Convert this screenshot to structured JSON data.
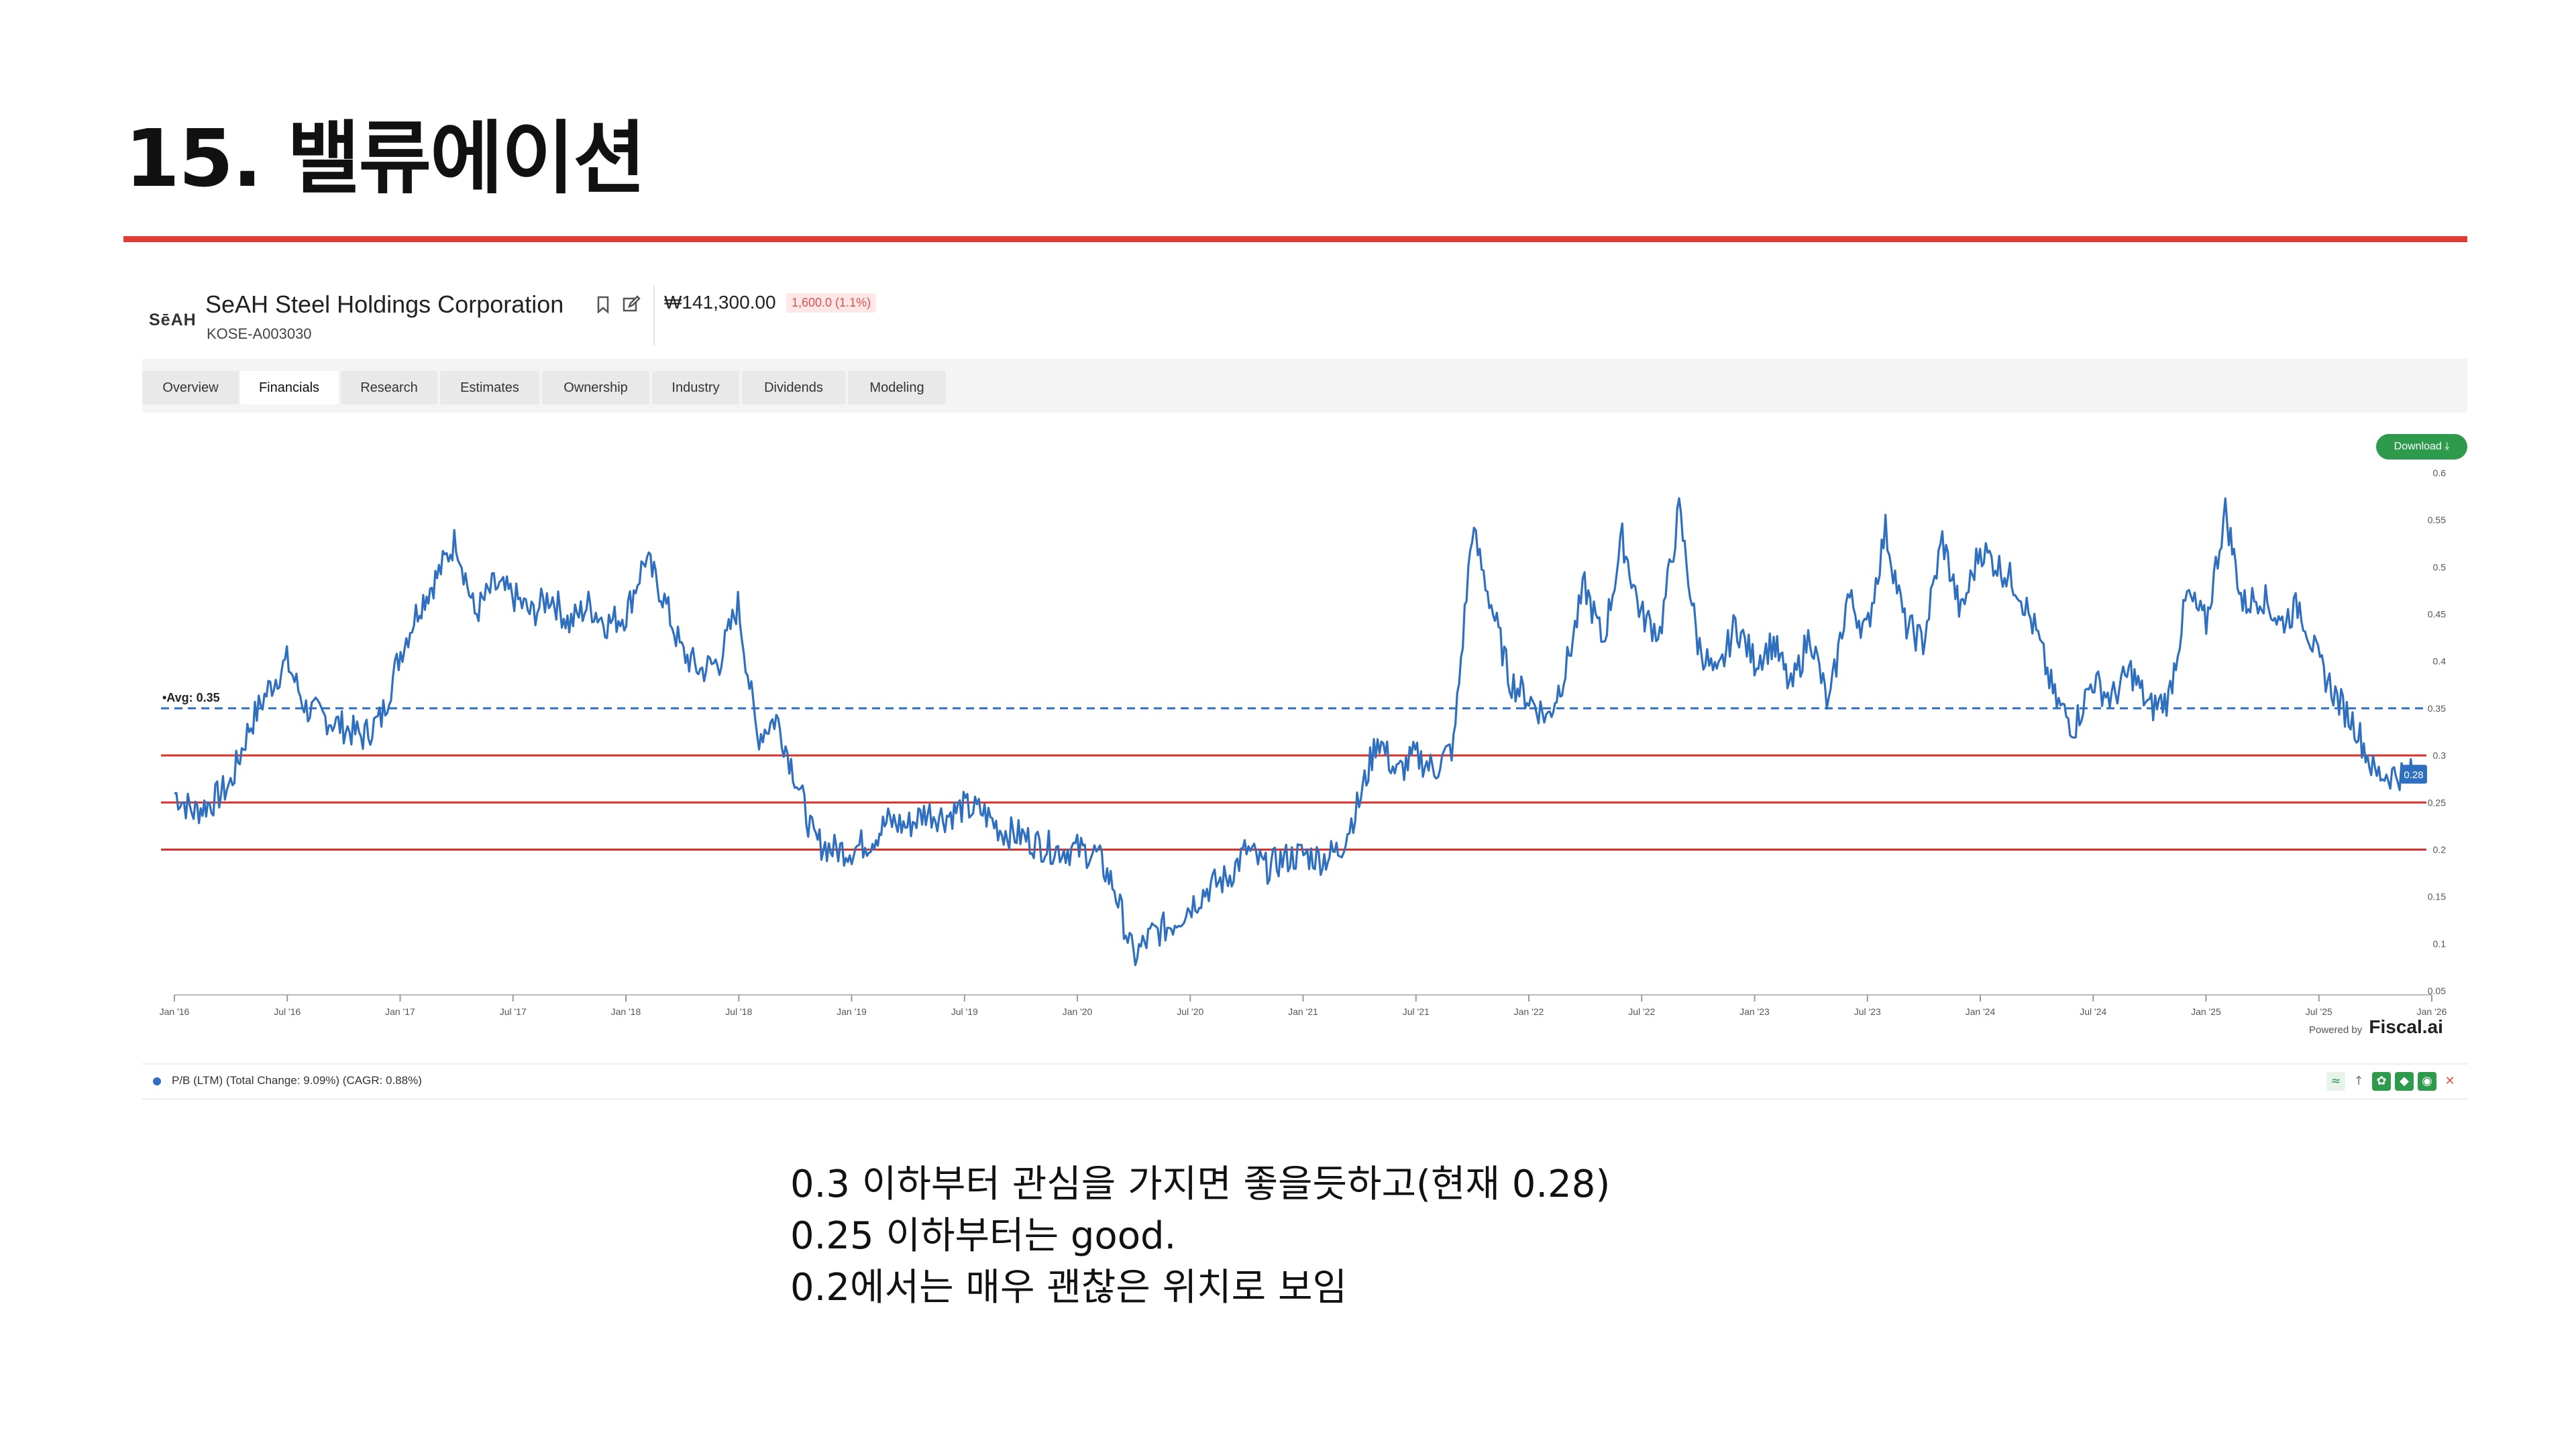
{
  "slide": {
    "title": "15. 밸류에이션",
    "notes": [
      "0.3 이하부터 관심을 가지면 좋을듯하고(현재 0.28)",
      "0.25 이하부터는 good.",
      "0.2에서는 매우 괜찮은 위치로 보임"
    ]
  },
  "header": {
    "logo": "SēAH",
    "company": "SeAH Steel Holdings Corporation",
    "ticker": "KOSE-A003030",
    "price": "₩141,300.00",
    "change": "1,600.0 (1.1%)",
    "icons": [
      "bookmark-icon",
      "edit-icon"
    ]
  },
  "tabs": [
    "Overview",
    "Financials",
    "Research",
    "Estimates",
    "Ownership",
    "Industry",
    "Dividends",
    "Modeling"
  ],
  "active_tab": "Financials",
  "download_label": "Download ⤓",
  "powered_by": {
    "prefix": "Powered by",
    "brand": "Fiscal.ai"
  },
  "legend": {
    "text": "P/B (LTM) (Total Change: 9.09%) (CAGR: 0.88%)",
    "color": "#2f6fbf"
  },
  "chart_data": {
    "type": "line",
    "series": [
      {
        "name": "P/B (LTM)",
        "color": "#2f6fbf",
        "points": [
          [
            "2016-01-01",
            0.26
          ],
          [
            "2016-02-01",
            0.24
          ],
          [
            "2016-03-01",
            0.25
          ],
          [
            "2016-04-01",
            0.27
          ],
          [
            "2016-05-01",
            0.33
          ],
          [
            "2016-06-01",
            0.37
          ],
          [
            "2016-07-01",
            0.4
          ],
          [
            "2016-08-01",
            0.35
          ],
          [
            "2016-09-01",
            0.34
          ],
          [
            "2016-10-01",
            0.33
          ],
          [
            "2016-11-01",
            0.32
          ],
          [
            "2016-12-01",
            0.34
          ],
          [
            "2017-01-01",
            0.41
          ],
          [
            "2017-02-01",
            0.46
          ],
          [
            "2017-03-01",
            0.49
          ],
          [
            "2017-04-01",
            0.53
          ],
          [
            "2017-05-01",
            0.45
          ],
          [
            "2017-06-01",
            0.48
          ],
          [
            "2017-07-01",
            0.47
          ],
          [
            "2017-08-01",
            0.45
          ],
          [
            "2017-09-01",
            0.47
          ],
          [
            "2017-10-01",
            0.44
          ],
          [
            "2017-11-01",
            0.46
          ],
          [
            "2017-12-01",
            0.44
          ],
          [
            "2018-01-01",
            0.45
          ],
          [
            "2018-02-01",
            0.51
          ],
          [
            "2018-03-01",
            0.47
          ],
          [
            "2018-04-01",
            0.41
          ],
          [
            "2018-05-01",
            0.39
          ],
          [
            "2018-06-01",
            0.4
          ],
          [
            "2018-07-01",
            0.46
          ],
          [
            "2018-08-01",
            0.32
          ],
          [
            "2018-09-01",
            0.34
          ],
          [
            "2018-10-01",
            0.28
          ],
          [
            "2018-11-01",
            0.21
          ],
          [
            "2018-12-01",
            0.2
          ],
          [
            "2019-01-01",
            0.2
          ],
          [
            "2019-02-01",
            0.21
          ],
          [
            "2019-03-01",
            0.23
          ],
          [
            "2019-04-01",
            0.225
          ],
          [
            "2019-05-01",
            0.24
          ],
          [
            "2019-06-01",
            0.235
          ],
          [
            "2019-07-01",
            0.245
          ],
          [
            "2019-08-01",
            0.24
          ],
          [
            "2019-09-01",
            0.22
          ],
          [
            "2019-10-01",
            0.215
          ],
          [
            "2019-11-01",
            0.205
          ],
          [
            "2019-12-01",
            0.2
          ],
          [
            "2020-01-01",
            0.2
          ],
          [
            "2020-02-01",
            0.195
          ],
          [
            "2020-03-01",
            0.16
          ],
          [
            "2020-04-01",
            0.085
          ],
          [
            "2020-05-01",
            0.11
          ],
          [
            "2020-06-01",
            0.12
          ],
          [
            "2020-07-01",
            0.14
          ],
          [
            "2020-08-01",
            0.16
          ],
          [
            "2020-09-01",
            0.17
          ],
          [
            "2020-10-01",
            0.2
          ],
          [
            "2020-11-01",
            0.18
          ],
          [
            "2020-12-01",
            0.19
          ],
          [
            "2021-01-01",
            0.195
          ],
          [
            "2021-02-01",
            0.19
          ],
          [
            "2021-03-01",
            0.2
          ],
          [
            "2021-04-01",
            0.25
          ],
          [
            "2021-05-01",
            0.32
          ],
          [
            "2021-06-01",
            0.28
          ],
          [
            "2021-07-01",
            0.3
          ],
          [
            "2021-08-01",
            0.285
          ],
          [
            "2021-09-01",
            0.31
          ],
          [
            "2021-10-01",
            0.54
          ],
          [
            "2021-11-01",
            0.46
          ],
          [
            "2021-12-01",
            0.38
          ],
          [
            "2022-01-01",
            0.36
          ],
          [
            "2022-02-01",
            0.34
          ],
          [
            "2022-03-01",
            0.39
          ],
          [
            "2022-04-01",
            0.48
          ],
          [
            "2022-05-01",
            0.42
          ],
          [
            "2022-06-01",
            0.53
          ],
          [
            "2022-07-01",
            0.45
          ],
          [
            "2022-08-01",
            0.43
          ],
          [
            "2022-09-01",
            0.56
          ],
          [
            "2022-10-01",
            0.42
          ],
          [
            "2022-11-01",
            0.38
          ],
          [
            "2022-12-01",
            0.44
          ],
          [
            "2023-01-01",
            0.4
          ],
          [
            "2023-02-01",
            0.42
          ],
          [
            "2023-03-01",
            0.37
          ],
          [
            "2023-04-01",
            0.43
          ],
          [
            "2023-05-01",
            0.35
          ],
          [
            "2023-06-01",
            0.47
          ],
          [
            "2023-07-01",
            0.43
          ],
          [
            "2023-08-01",
            0.54
          ],
          [
            "2023-09-01",
            0.44
          ],
          [
            "2023-10-01",
            0.42
          ],
          [
            "2023-11-01",
            0.53
          ],
          [
            "2023-12-01",
            0.45
          ],
          [
            "2024-01-01",
            0.52
          ],
          [
            "2024-02-01",
            0.5
          ],
          [
            "2024-03-01",
            0.48
          ],
          [
            "2024-04-01",
            0.43
          ],
          [
            "2024-05-01",
            0.36
          ],
          [
            "2024-06-01",
            0.33
          ],
          [
            "2024-07-01",
            0.38
          ],
          [
            "2024-08-01",
            0.36
          ],
          [
            "2024-09-01",
            0.39
          ],
          [
            "2024-10-01",
            0.35
          ],
          [
            "2024-11-01",
            0.36
          ],
          [
            "2024-12-01",
            0.47
          ],
          [
            "2025-01-01",
            0.44
          ],
          [
            "2025-02-01",
            0.56
          ],
          [
            "2025-03-01",
            0.46
          ],
          [
            "2025-04-01",
            0.47
          ],
          [
            "2025-05-01",
            0.44
          ],
          [
            "2025-06-01",
            0.46
          ],
          [
            "2025-07-01",
            0.4
          ],
          [
            "2025-08-01",
            0.36
          ],
          [
            "2025-09-01",
            0.33
          ],
          [
            "2025-10-01",
            0.28
          ],
          [
            "2025-11-01",
            0.28
          ],
          [
            "2025-12-01",
            0.28
          ]
        ]
      }
    ],
    "x_ticks": [
      "Jan '16",
      "Jul '16",
      "Jan '17",
      "Jul '17",
      "Jan '18",
      "Jul '18",
      "Jan '19",
      "Jul '19",
      "Jan '20",
      "Jul '20",
      "Jan '21",
      "Jul '21",
      "Jan '22",
      "Jul '22",
      "Jan '23",
      "Jul '23",
      "Jan '24",
      "Jul '24",
      "Jan '25",
      "Jul '25",
      "Jan '26"
    ],
    "y_ticks": [
      "0.6",
      "0.55",
      "0.5",
      "0.45",
      "0.4",
      "0.35",
      "0.3",
      "0.25",
      "0.2",
      "0.15",
      "0.1",
      "0.05"
    ],
    "ylim": [
      0.05,
      0.6
    ],
    "average": {
      "label": "Avg: 0.35",
      "value": 0.35,
      "color": "#2f6fbf"
    },
    "reference_lines": [
      0.3,
      0.25,
      0.2
    ],
    "reference_color": "#d9302a",
    "current_label": "0.28",
    "grid": false
  }
}
